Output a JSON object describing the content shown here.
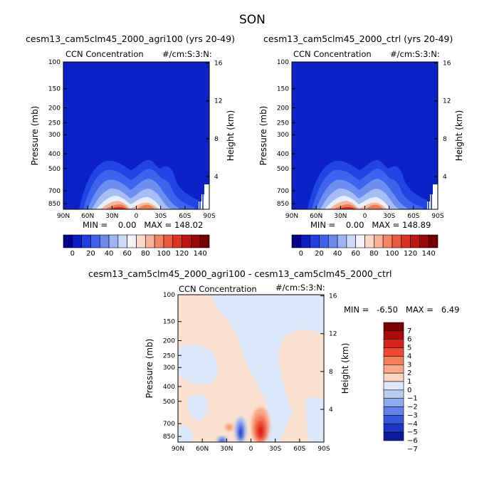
{
  "main_title": "SON",
  "chart_data": [
    {
      "type": "heatmap",
      "title": "cesm13_cam5clm45_2000_agri100 (yrs 20-49)",
      "subtitle_left": "CCN Concentration",
      "subtitle_right": "#/cm:S:3:N:",
      "ylabel": "Pressure (mb)",
      "ylabel_right": "Height (km)",
      "x_ticks": [
        "90N",
        "60N",
        "30N",
        "0",
        "30S",
        "60S",
        "90S"
      ],
      "y_ticks": [
        "100",
        "150",
        "200",
        "250",
        "300",
        "400",
        "500",
        "700",
        "850"
      ],
      "y_ticks_right": [
        "16",
        "12",
        "8",
        "4"
      ],
      "min_max_text": "MIN =    0.00   MAX = 148.02",
      "stats": {
        "min": 0.0,
        "max": 148.02
      },
      "colorbar_labels": [
        "0",
        "20",
        "40",
        "60",
        "80",
        "100",
        "120",
        "140"
      ]
    },
    {
      "type": "heatmap",
      "title": "cesm13_cam5clm45_2000_ctrl (yrs 20-49)",
      "subtitle_left": "CCN Concentration",
      "subtitle_right": "#/cm:S:3:N:",
      "ylabel": "Pressure (mb)",
      "ylabel_right": "Height (km)",
      "x_ticks": [
        "90N",
        "60N",
        "30N",
        "0",
        "30S",
        "60S",
        "90S"
      ],
      "y_ticks": [
        "100",
        "150",
        "200",
        "250",
        "300",
        "400",
        "500",
        "700",
        "850"
      ],
      "y_ticks_right": [
        "16",
        "12",
        "8",
        "4"
      ],
      "min_max_text": "MIN =    0.00   MAX = 148.89",
      "stats": {
        "min": 0.0,
        "max": 148.89
      },
      "colorbar_labels": [
        "0",
        "20",
        "40",
        "60",
        "80",
        "100",
        "120",
        "140"
      ]
    },
    {
      "type": "heatmap",
      "title": "cesm13_cam5clm45_2000_agri100 - cesm13_cam5clm45_2000_ctrl",
      "subtitle_left": "CCN Concentration",
      "subtitle_right": "#/cm:S:3:N:",
      "ylabel": "Pressure (mb)",
      "ylabel_right": "Height (km)",
      "x_ticks": [
        "90N",
        "60N",
        "30N",
        "0",
        "30S",
        "60S",
        "90S"
      ],
      "y_ticks": [
        "100",
        "150",
        "200",
        "250",
        "300",
        "400",
        "500",
        "700",
        "850"
      ],
      "y_ticks_right": [
        "16",
        "12",
        "8",
        "4"
      ],
      "min_max_text": "MIN =   -6.50   MAX =   6.49",
      "stats": {
        "min": -6.5,
        "max": 6.49
      },
      "colorbar_labels": [
        "7",
        "6",
        "5",
        "4",
        "3",
        "2",
        "1",
        "0",
        "-1",
        "-2",
        "-3",
        "-4",
        "-5",
        "-6",
        "-7"
      ]
    }
  ],
  "colors": {
    "abs_scale": [
      "#00008a",
      "#0a1cc4",
      "#1f3fde",
      "#3f62ea",
      "#6a8aee",
      "#9db3f4",
      "#cdd9fb",
      "#f4f4f8",
      "#fbd8c8",
      "#f8b197",
      "#f28764",
      "#eb5a3c",
      "#dc3320",
      "#c0140f",
      "#9c0505",
      "#720000"
    ],
    "diff_scale": [
      "#7a0000",
      "#b00a06",
      "#d8241a",
      "#ee4b2e",
      "#f57e5b",
      "#f9a98a",
      "#fcd6c3",
      "#dfe9fb",
      "#b9ccf5",
      "#8eabee",
      "#5f83e8",
      "#3459dd",
      "#1c36c8",
      "#0b1b9c"
    ]
  }
}
